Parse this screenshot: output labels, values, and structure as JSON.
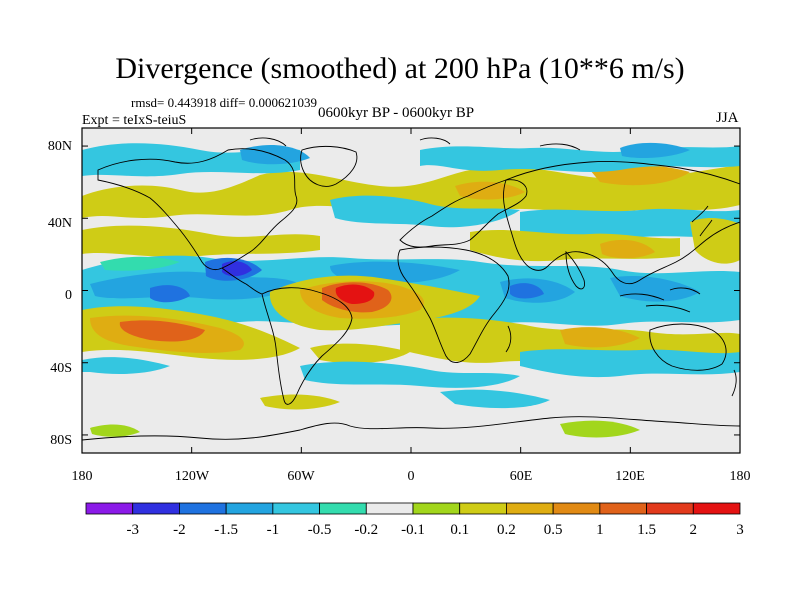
{
  "title": "Divergence (smoothed) at 200 hPa (10**6 m/s)",
  "stats": "rmsd= 0.443918 diff= 0.000621039",
  "experiment": "Expt = teIxS-teiuS",
  "period": "0600kyr BP - 0600kyr BP",
  "season": "JJA",
  "lat_labels": [
    "80N",
    "40N",
    "0",
    "40S",
    "80S"
  ],
  "lon_labels": [
    "180",
    "120W",
    "60W",
    "0",
    "60E",
    "120E",
    "180"
  ],
  "colorbar": {
    "labels": [
      "-3",
      "-2",
      "-1.5",
      "-1",
      "-0.5",
      "-0.2",
      "-0.1",
      "0.1",
      "0.2",
      "0.5",
      "1",
      "1.5",
      "2",
      "3"
    ],
    "colors": [
      "#8b1ae8",
      "#3030e0",
      "#1f72e0",
      "#23a4e0",
      "#34c6e0",
      "#33dcae",
      "#ebebeb",
      "#a2d61c",
      "#cfcc16",
      "#dfad12",
      "#e18a14",
      "#e0621a",
      "#e23a1c",
      "#e41212"
    ]
  },
  "colors": {
    "background": "#ebebeb",
    "positive_light": "#cfcc16",
    "positive_mid": "#dfad12",
    "positive_strong": "#e0621a",
    "positive_max": "#e41212",
    "negative_light": "#34c6e0",
    "negative_mid": "#23a4e0",
    "negative_strong": "#1f72e0",
    "negative_max": "#3030e0",
    "weak_negative": "#33dcae",
    "weak_positive": "#a2d61c"
  }
}
